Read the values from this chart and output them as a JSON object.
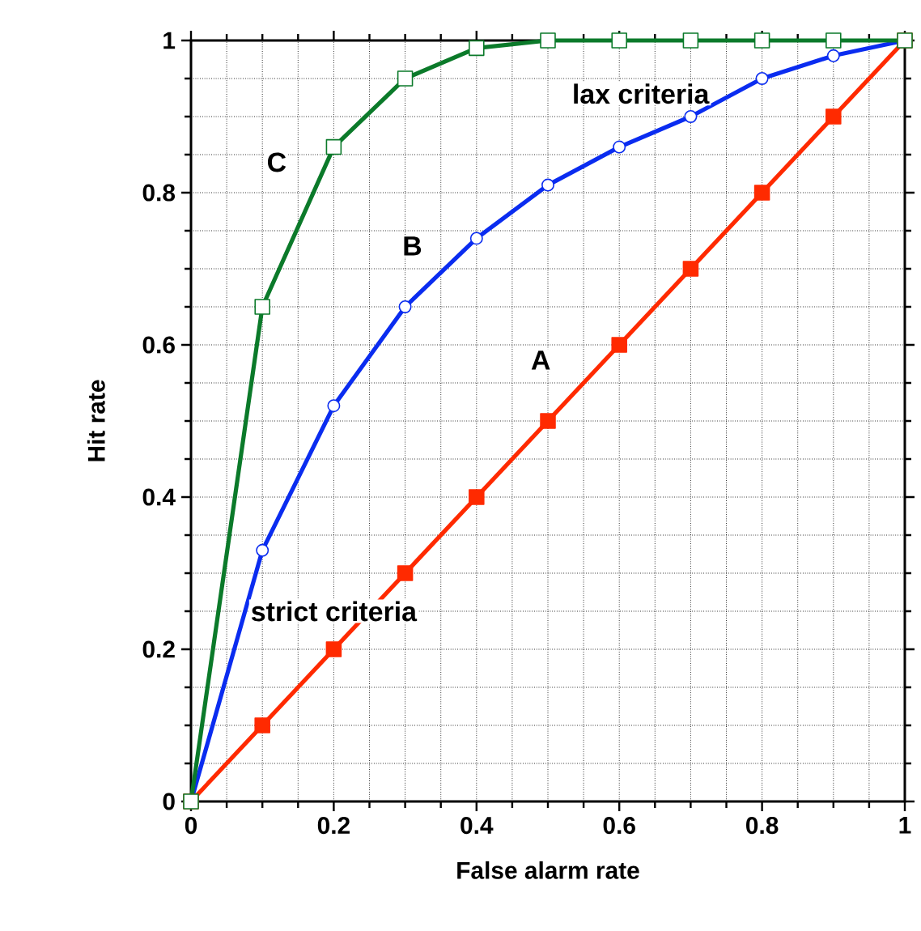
{
  "chart_data": {
    "type": "line",
    "xlabel": "False alarm rate",
    "ylabel": "Hit rate",
    "x": [
      0,
      0.1,
      0.2,
      0.3,
      0.4,
      0.5,
      0.6,
      0.7,
      0.8,
      0.9,
      1
    ],
    "series": [
      {
        "color": "#ff2a00",
        "marker": "square",
        "values": [
          0,
          0.1,
          0.2,
          0.3,
          0.4,
          0.5,
          0.6,
          0.7,
          0.8,
          0.9,
          1
        ]
      },
      {
        "color": "#0a2cf0",
        "marker": "circle",
        "values": [
          0,
          0.33,
          0.52,
          0.65,
          0.74,
          0.81,
          0.86,
          0.9,
          0.95,
          0.98,
          1
        ]
      },
      {
        "color": "#0b7a2a",
        "marker": "square",
        "values": [
          0,
          0.65,
          0.86,
          0.95,
          0.99,
          1,
          1,
          1,
          1,
          1,
          1
        ]
      }
    ],
    "annotations": [
      {
        "text": "A",
        "x": 0.49,
        "y": 0.58
      },
      {
        "text": "B",
        "x": 0.31,
        "y": 0.73
      },
      {
        "text": "C",
        "x": 0.12,
        "y": 0.84
      },
      "lax criteria",
      "strict criteria"
    ],
    "xlim": [
      0,
      1
    ],
    "ylim": [
      0,
      1
    ],
    "xticks": [
      0,
      0.2,
      0.4,
      0.6,
      0.8,
      1
    ],
    "yticks": [
      0,
      0.2,
      0.4,
      0.6,
      0.8,
      1
    ],
    "grid": true,
    "line_style": "solid"
  }
}
